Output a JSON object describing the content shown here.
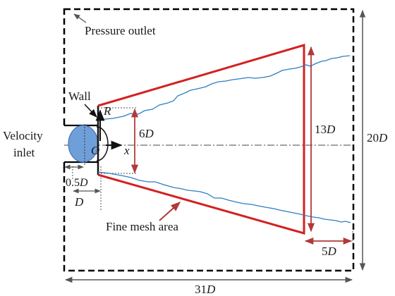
{
  "labels": {
    "pressure_outlet": "Pressure outlet",
    "wall": "Wall",
    "velocity_line1": "Velocity",
    "velocity_line2": "inlet",
    "fine_mesh": "Fine mesh area",
    "origin": "O",
    "x_axis": "x",
    "r_axis": "R"
  },
  "dimensions": {
    "d_6": {
      "num": "6",
      "unit": "D"
    },
    "d_13": {
      "num": "13",
      "unit": "D"
    },
    "d_20": {
      "num": "20",
      "unit": "D"
    },
    "d_31": {
      "num": "31",
      "unit": "D"
    },
    "d_5": {
      "num": "5",
      "unit": "D"
    },
    "d_05": {
      "num": "0.5",
      "unit": "D"
    },
    "d_1": {
      "num": "",
      "unit": "D"
    }
  },
  "colors": {
    "domain_border": "#000000",
    "mesh_region": "#d42020",
    "dimension_arrow": "#b03a3a",
    "jet_boundary": "#2a7fc4",
    "inlet_fill": "#6f9fd8",
    "grey_arrow": "#555555"
  }
}
